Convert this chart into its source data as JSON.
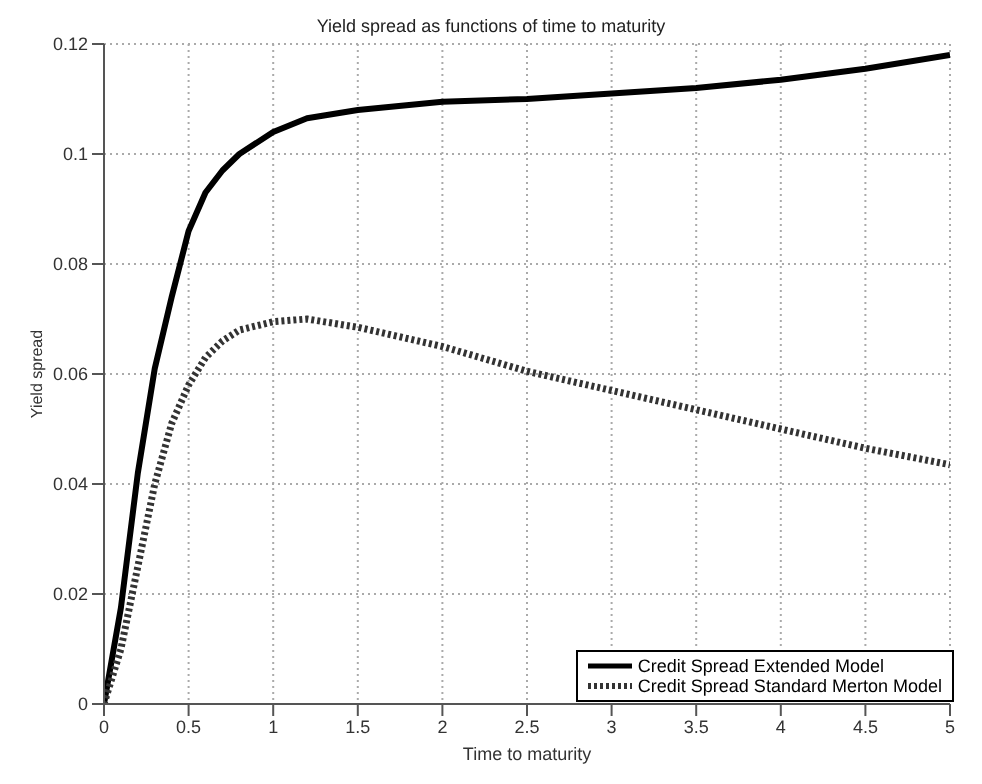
{
  "chart_data": {
    "type": "line",
    "title": "Yield spread as functions of time to maturity",
    "xlabel": "Time to maturity",
    "ylabel": "Yield spread",
    "x": [
      0,
      0.1,
      0.2,
      0.3,
      0.4,
      0.5,
      0.6,
      0.7,
      0.8,
      1.0,
      1.2,
      1.5,
      2,
      2.5,
      3,
      3.5,
      4,
      4.5,
      5
    ],
    "series": [
      {
        "name": "Credit Spread Extended Model",
        "color": "#000000",
        "line_style": "solid",
        "values": [
          0,
          0.0175,
          0.042,
          0.061,
          0.074,
          0.086,
          0.093,
          0.097,
          0.1,
          0.104,
          0.1065,
          0.108,
          0.1095,
          0.11,
          0.111,
          0.112,
          0.1135,
          0.1155,
          0.118
        ]
      },
      {
        "name": "Credit Spread Standard Merton Model",
        "color": "#333333",
        "line_style": "dotted",
        "values": [
          0,
          0.01,
          0.025,
          0.04,
          0.051,
          0.058,
          0.063,
          0.066,
          0.068,
          0.0695,
          0.07,
          0.0685,
          0.065,
          0.0605,
          0.057,
          0.0535,
          0.05,
          0.0465,
          0.0435
        ]
      }
    ],
    "xlim": [
      0,
      5
    ],
    "xticks": [
      0,
      0.5,
      1,
      1.5,
      2,
      2.5,
      3,
      3.5,
      4,
      4.5,
      5
    ],
    "ylim": [
      0,
      0.12
    ],
    "yticks": [
      0,
      0.02,
      0.04,
      0.06,
      0.08,
      0.1,
      0.12
    ],
    "grid": true,
    "legend": "bottom right",
    "marker": "none"
  }
}
